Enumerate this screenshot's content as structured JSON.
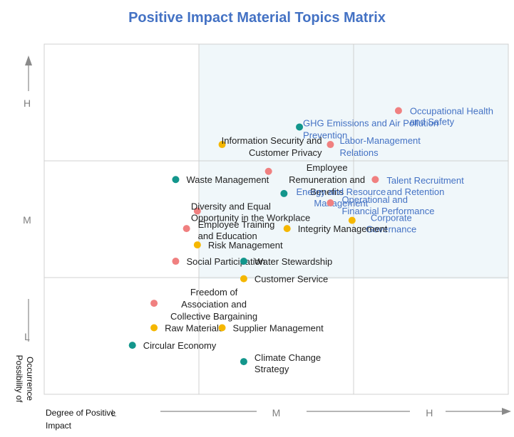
{
  "chart_data": {
    "type": "scatter",
    "title": "Positive Impact Material Topics Matrix",
    "xlabel": [
      "Degree of Positive",
      "Impact"
    ],
    "ylabel": [
      "Possibility of",
      "Occurrence"
    ],
    "x_ticks": [
      "L",
      "M",
      "H"
    ],
    "y_ticks": [
      "H",
      "M",
      "L"
    ],
    "xlim": [
      0,
      3
    ],
    "ylim": [
      0,
      3
    ],
    "grid": "3x3",
    "highlighted_region": "x >= 1, y >= 1",
    "colors": {
      "pink": "#f08080",
      "teal": "#13968c",
      "yellow": "#f5b700",
      "highlight_text": "#4472c4",
      "text": "#222222",
      "zone_fill": "#f0f7fa"
    },
    "points": [
      {
        "label": [
          "Occupational Health",
          "and Safety"
        ],
        "x": 2.29,
        "y": 2.43,
        "color": "pink",
        "anchor": "start",
        "dx": 16,
        "highlight": true,
        "line_gap": 15
      },
      {
        "label": [
          "GHG Emissions and Air Pollution",
          "Prevention"
        ],
        "x": 1.65,
        "y": 2.29,
        "color": "teal",
        "anchor": "start",
        "dx": 5,
        "dy": -6,
        "highlight": true,
        "line_gap": 17
      },
      {
        "label": [
          "Labor-Management",
          "Relations"
        ],
        "x": 1.85,
        "y": 2.14,
        "color": "pink",
        "anchor": "start",
        "dx": 13,
        "dy": -6,
        "highlight": true,
        "line_gap": 17
      },
      {
        "label": [
          "Information Security and",
          "Customer Privacy"
        ],
        "x": 1.15,
        "y": 2.14,
        "color": "yellow",
        "anchor": "end",
        "dx": 140,
        "dy": -6,
        "line_gap": 17
      },
      {
        "label": [
          "Employee",
          "Remuneration and",
          "Benefits"
        ],
        "x": 1.45,
        "y": 1.91,
        "color": "pink",
        "anchor": "middle",
        "dx": 82,
        "dy": -6,
        "line_gap": 17
      },
      {
        "label": [
          "Talent Recruitment",
          "and Retention"
        ],
        "x": 2.14,
        "y": 1.84,
        "color": "pink",
        "anchor": "start",
        "dx": 16,
        "dy": 1,
        "highlight": true,
        "line_gap": 16
      },
      {
        "label": [
          "Waste Management"
        ],
        "x": 0.85,
        "y": 1.84,
        "color": "teal",
        "anchor": "start",
        "dx": 15
      },
      {
        "label": [
          "Energy and Resource",
          "Management"
        ],
        "x": 1.55,
        "y": 1.72,
        "color": "teal",
        "anchor": "middle",
        "dx": 80,
        "dy": -3,
        "highlight": true,
        "line_gap": 16
      },
      {
        "label": [
          "Operational and",
          "Financial Performance"
        ],
        "x": 1.85,
        "y": 1.64,
        "color": "pink",
        "anchor": "start",
        "dx": 16,
        "dy": -5,
        "highlight": true,
        "line_gap": 16
      },
      {
        "label": [
          "Diversity and Equal",
          "Opportunity in the Workplace"
        ],
        "x": 0.99,
        "y": 1.57,
        "color": "pink",
        "anchor": "start",
        "dx": -9,
        "dy": -7,
        "line_gap": 16
      },
      {
        "label": [
          "Corporate",
          "Governance"
        ],
        "x": 1.99,
        "y": 1.49,
        "color": "yellow",
        "anchor": "middle",
        "dx": 55,
        "dy": -4,
        "highlight": true,
        "line_gap": 16
      },
      {
        "label": [
          "Employee Training",
          "and Education"
        ],
        "x": 0.92,
        "y": 1.42,
        "color": "pink",
        "anchor": "start",
        "dx": 16,
        "dy": -6,
        "line_gap": 16
      },
      {
        "label": [
          "Integrity Management"
        ],
        "x": 1.57,
        "y": 1.42,
        "color": "yellow",
        "anchor": "start",
        "dx": 15
      },
      {
        "label": [
          "Risk Management"
        ],
        "x": 0.99,
        "y": 1.28,
        "color": "yellow",
        "anchor": "start",
        "dx": 15
      },
      {
        "label": [
          "Social Participation"
        ],
        "x": 0.85,
        "y": 1.14,
        "color": "pink",
        "anchor": "start",
        "dx": 15
      },
      {
        "label": [
          "Water Stewardship"
        ],
        "x": 1.29,
        "y": 1.14,
        "color": "teal",
        "anchor": "start",
        "dx": 15
      },
      {
        "label": [
          "Customer Service"
        ],
        "x": 1.29,
        "y": 0.99,
        "color": "yellow",
        "anchor": "start",
        "dx": 15
      },
      {
        "label": [
          "Freedom of",
          "Association and",
          "Collective Bargaining"
        ],
        "x": 0.71,
        "y": 0.78,
        "color": "pink",
        "anchor": "middle",
        "dx": 84,
        "dy": -16,
        "line_gap": 17
      },
      {
        "label": [
          "Raw Materials"
        ],
        "x": 0.71,
        "y": 0.57,
        "color": "yellow",
        "anchor": "start",
        "dx": 15
      },
      {
        "label": [
          "Supplier Management"
        ],
        "x": 1.15,
        "y": 0.57,
        "color": "yellow",
        "anchor": "start",
        "dx": 15
      },
      {
        "label": [
          "Circular Economy"
        ],
        "x": 0.57,
        "y": 0.42,
        "color": "teal",
        "anchor": "start",
        "dx": 15
      },
      {
        "label": [
          "Climate Change",
          "Strategy"
        ],
        "x": 1.29,
        "y": 0.28,
        "color": "teal",
        "anchor": "start",
        "dx": 15,
        "dy": -6,
        "line_gap": 16
      }
    ]
  }
}
